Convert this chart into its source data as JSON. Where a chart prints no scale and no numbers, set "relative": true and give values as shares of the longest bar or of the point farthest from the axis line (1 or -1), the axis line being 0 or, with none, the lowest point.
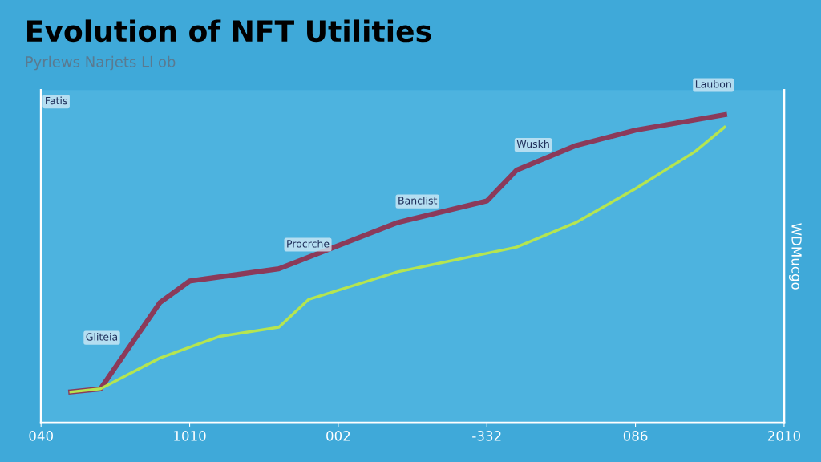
{
  "chart_data": {
    "type": "line",
    "title": "Evolution of NFT Utilities",
    "subtitle": "Pyrlews Narjets Ll ob",
    "ylabel": "WDMucgo",
    "relative": true,
    "categories": [
      "040",
      null,
      null,
      null,
      null,
      "1010",
      null,
      null,
      null,
      null,
      "002",
      null,
      null,
      null,
      null,
      "-332",
      null,
      null,
      null,
      null,
      "086",
      null,
      null,
      null,
      null,
      "2010"
    ],
    "series": [
      {
        "color": "#8b3a5a",
        "values": [
          null,
          0.1,
          0.11,
          null,
          0.39,
          0.46,
          null,
          null,
          0.5,
          null,
          null,
          null,
          0.65,
          null,
          null,
          0.72,
          0.82,
          null,
          0.9,
          null,
          0.95,
          null,
          null,
          1.0,
          null,
          null
        ]
      },
      {
        "color": "#b5e550",
        "values": [
          null,
          0.1,
          0.11,
          null,
          0.21,
          null,
          0.28,
          null,
          0.31,
          0.4,
          null,
          null,
          0.49,
          0.51,
          null,
          null,
          0.57,
          null,
          0.65,
          null,
          0.76,
          null,
          0.88,
          0.96,
          null,
          null
        ]
      }
    ],
    "annotations": [
      "Fatis",
      "Gliteia",
      "Procrche",
      "Banclist",
      "Wuskh",
      "Laubon"
    ],
    "grid": false,
    "legend": false
  }
}
